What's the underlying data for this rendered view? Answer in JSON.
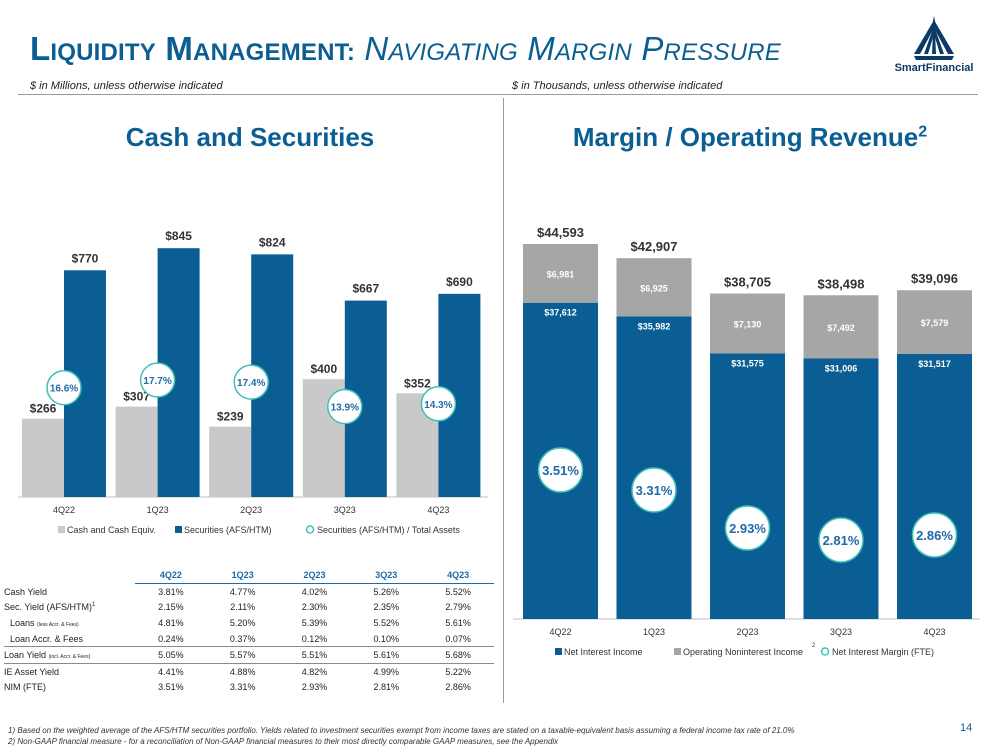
{
  "header": {
    "title_l_cap": "L",
    "title_l_rest": "IQUIDITY",
    "title_m_cap": "M",
    "title_m_rest": "ANAGEMENT:",
    "title_n_cap": "N",
    "title_n_rest": "AVIGATING",
    "title_mg_cap": "M",
    "title_mg_rest": "ARGIN",
    "title_p_cap": "P",
    "title_p_rest": "RESSURE",
    "logo_text": "SmartFinancial"
  },
  "left": {
    "units": "$ in Millions, unless otherwise indicated",
    "panel_title": "Cash and Securities"
  },
  "right": {
    "units": "$ in Thousands, unless otherwise indicated",
    "panel_title": "Margin / Operating Revenue",
    "panel_title_sup": "2"
  },
  "colors": {
    "navy": "#0b5e93",
    "grey": "#a6a6a6",
    "lightgrey": "#c9c9c9",
    "teal": "#3ec1b8"
  },
  "chart_data": [
    {
      "type": "bar",
      "title": "Cash and Securities",
      "categories": [
        "4Q22",
        "1Q23",
        "2Q23",
        "3Q23",
        "4Q23"
      ],
      "series": [
        {
          "name": "Cash and Cash Equiv.",
          "values": [
            266,
            307,
            239,
            400,
            352
          ],
          "labels": [
            "$266",
            "$307",
            "$239",
            "$400",
            "$352"
          ]
        },
        {
          "name": "Securities (AFS/HTM)",
          "values": [
            770,
            845,
            824,
            667,
            690
          ],
          "labels": [
            "$770",
            "$845",
            "$824",
            "$667",
            "$690"
          ]
        },
        {
          "name": "Securities (AFS/HTM) / Total Assets",
          "values": [
            16.6,
            17.7,
            17.4,
            13.9,
            14.3
          ],
          "labels": [
            "16.6%",
            "17.7%",
            "17.4%",
            "13.9%",
            "14.3%"
          ]
        }
      ],
      "ylim": [
        0,
        900
      ]
    },
    {
      "type": "bar",
      "stacked": true,
      "title": "Margin / Operating Revenue",
      "categories": [
        "4Q22",
        "1Q23",
        "2Q23",
        "3Q23",
        "4Q23"
      ],
      "series": [
        {
          "name": "Net Interest Income",
          "values": [
            37612,
            35982,
            31575,
            31006,
            31517
          ],
          "labels": [
            "$37,612",
            "$35,982",
            "$31,575",
            "$31,006",
            "$31,517"
          ]
        },
        {
          "name": "Operating Noninterest Income",
          "name_sup": "2",
          "values": [
            6981,
            6925,
            7130,
            7492,
            7579
          ],
          "labels": [
            "$6,981",
            "$6,925",
            "$7,130",
            "$7,492",
            "$7,579"
          ]
        },
        {
          "name": "Net Interest Margin (FTE)",
          "values": [
            3.51,
            3.31,
            2.93,
            2.81,
            2.86
          ],
          "labels": [
            "3.51%",
            "3.31%",
            "2.93%",
            "2.81%",
            "2.86%"
          ]
        }
      ],
      "totals": [
        44593,
        42907,
        38705,
        38498,
        39096
      ],
      "total_labels": [
        "$44,593",
        "$42,907",
        "$38,705",
        "$38,498",
        "$39,096"
      ],
      "ylim": [
        0,
        46000
      ]
    }
  ],
  "yield_table": {
    "headers": [
      "4Q22",
      "1Q23",
      "2Q23",
      "3Q23",
      "4Q23"
    ],
    "rows": [
      {
        "label": "Cash Yield",
        "values": [
          "3.81%",
          "4.77%",
          "4.02%",
          "5.26%",
          "5.52%"
        ]
      },
      {
        "label": "Sec. Yield (AFS/HTM)",
        "sup": "1",
        "values": [
          "2.15%",
          "2.11%",
          "2.30%",
          "2.35%",
          "2.79%"
        ]
      },
      {
        "label": "Loans",
        "note": "(less Accr. & Fees)",
        "values": [
          "4.81%",
          "5.20%",
          "5.39%",
          "5.52%",
          "5.61%"
        ]
      },
      {
        "label": "Loan Accr. & Fees",
        "values": [
          "0.24%",
          "0.37%",
          "0.12%",
          "0.10%",
          "0.07%"
        ]
      },
      {
        "label": "Loan Yield",
        "note": "(incl. Accr. & Fees)",
        "values": [
          "5.05%",
          "5.57%",
          "5.51%",
          "5.61%",
          "5.68%"
        ]
      },
      {
        "label": "IE Asset Yield",
        "values": [
          "4.41%",
          "4.88%",
          "4.82%",
          "4.99%",
          "5.22%"
        ]
      },
      {
        "label": "NIM (FTE)",
        "values": [
          "3.51%",
          "3.31%",
          "2.93%",
          "2.81%",
          "2.86%"
        ]
      }
    ]
  },
  "footnotes": [
    "1) Based on the weighted average of the AFS/HTM securities portfolio. Yields related to investment securities exempt from income taxes are stated on a taxable-equivalent basis assuming a federal income tax rate of 21.0%",
    "2) Non-GAAP financial measure - for a reconciliation of Non-GAAP financial measures to their most directly comparable GAAP measures, see the Appendix"
  ],
  "page_number": "14"
}
